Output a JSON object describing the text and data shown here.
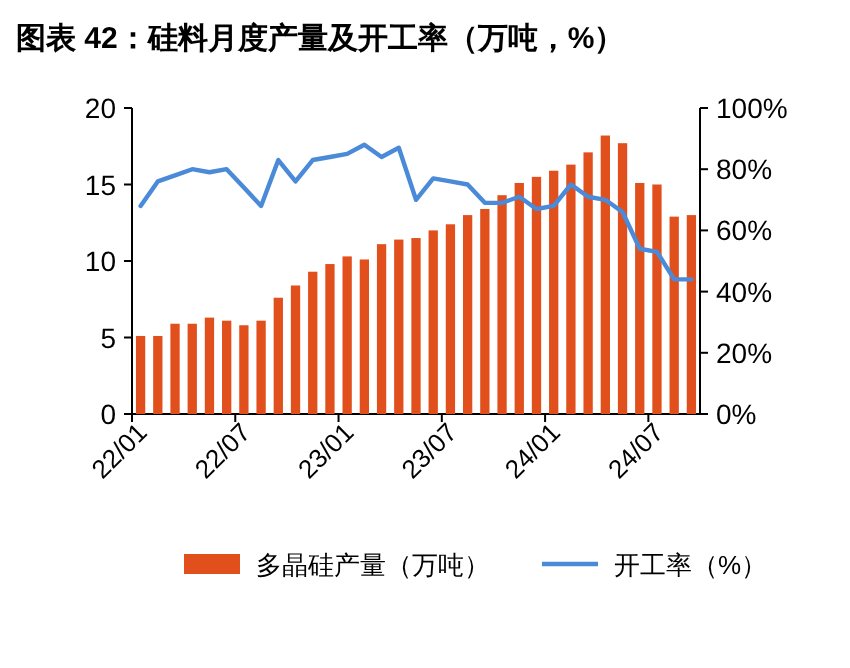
{
  "chart_data": {
    "type": "bar",
    "title": "图表 42：硅料月度产量及开工率（万吨，%）",
    "categories": [
      "22/01",
      null,
      null,
      null,
      null,
      null,
      "22/07",
      null,
      null,
      null,
      null,
      null,
      "23/01",
      null,
      null,
      null,
      null,
      null,
      "23/07",
      null,
      null,
      null,
      null,
      null,
      "24/01",
      null,
      null,
      null,
      null,
      null,
      "24/07",
      null,
      null
    ],
    "series": [
      {
        "name": "多晶硅产量（万吨）",
        "color": "#e04f1c",
        "values": [
          5.1,
          5.1,
          5.9,
          5.9,
          6.3,
          6.1,
          5.8,
          6.1,
          7.6,
          8.4,
          9.3,
          9.8,
          10.3,
          10.1,
          11.1,
          11.4,
          11.5,
          12.0,
          12.4,
          13.0,
          13.4,
          14.3,
          15.1,
          15.5,
          15.9,
          16.3,
          17.1,
          18.2,
          17.7,
          15.1,
          15.0,
          12.9,
          13.0
        ]
      },
      {
        "name": "开工率（%）",
        "type": "line",
        "axis": "y2",
        "color": "#4a8ad8",
        "values": [
          68,
          76,
          78,
          80,
          79,
          80,
          74,
          68,
          83,
          76,
          83,
          84,
          85,
          88,
          84,
          87,
          70,
          77,
          76,
          75,
          69,
          69,
          71,
          67,
          68,
          75,
          71,
          70,
          66,
          54,
          53,
          44,
          44
        ]
      }
    ],
    "ylim": [
      0,
      20
    ],
    "yticks": [
      0,
      5,
      10,
      15,
      20
    ],
    "y2lim": [
      0,
      100
    ],
    "y2ticks": [
      {
        "value": 0,
        "label": "0%"
      },
      {
        "value": 20,
        "label": "20%"
      },
      {
        "value": 40,
        "label": "40%"
      },
      {
        "value": 60,
        "label": "60%"
      },
      {
        "value": 80,
        "label": "80%"
      },
      {
        "value": 100,
        "label": "100%"
      }
    ],
    "legend": "bottom"
  }
}
